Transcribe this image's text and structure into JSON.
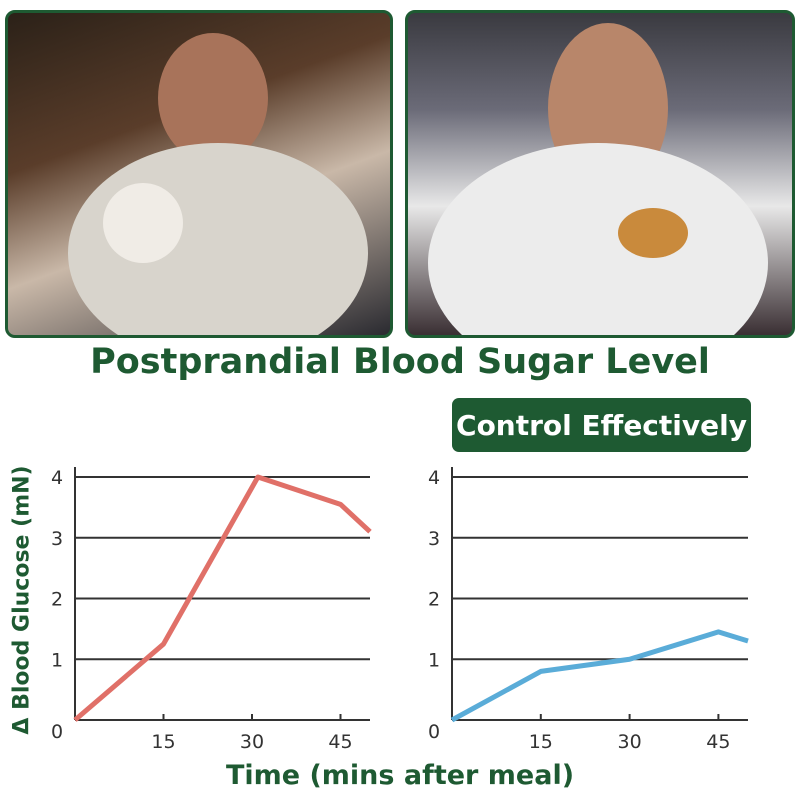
{
  "photos": [
    {
      "subject": "man eating cake"
    },
    {
      "subject": "man eating pastry"
    }
  ],
  "title": "Postprandial Blood Sugar Level",
  "badge": "Control Effectively",
  "colors": {
    "brand": "#1e5a32",
    "left_series": "#e07068",
    "right_series": "#5aacd8"
  },
  "chart_data": [
    {
      "type": "line",
      "xlabel": "Time (mins after meal)",
      "ylabel": "Δ Blood Glucose (mN)",
      "xticks": [
        "15",
        "30",
        "45"
      ],
      "yticks": [
        "0",
        "1",
        "2",
        "3",
        "4"
      ],
      "xlim": [
        0,
        50
      ],
      "ylim": [
        0,
        4
      ],
      "grid": "horizontal",
      "x": [
        0,
        15,
        31,
        45,
        50
      ],
      "values": [
        0,
        1.25,
        4,
        3.55,
        3.1
      ],
      "color": "#e07068"
    },
    {
      "type": "line",
      "xlabel": "Time (mins after meal)",
      "ylabel": "Δ Blood Glucose (mN)",
      "xticks": [
        "15",
        "30",
        "45"
      ],
      "yticks": [
        "0",
        "1",
        "2",
        "3",
        "4"
      ],
      "xlim": [
        0,
        50
      ],
      "ylim": [
        0,
        4
      ],
      "grid": "horizontal",
      "x": [
        0,
        15,
        30,
        45,
        50
      ],
      "values": [
        0,
        0.8,
        1.0,
        1.45,
        1.3
      ],
      "color": "#5aacd8"
    }
  ],
  "axis": {
    "xlabel": "Time (mins after meal)",
    "ylabel": "Δ Blood Glucose (mN)"
  }
}
